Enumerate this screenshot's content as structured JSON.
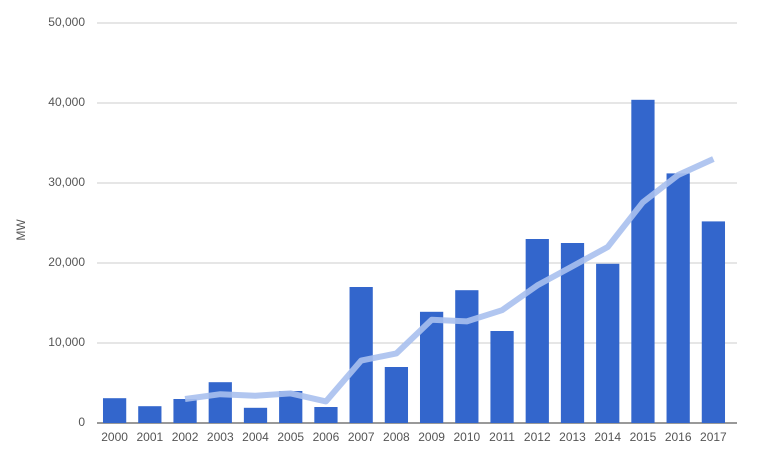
{
  "chart_data": {
    "type": "bar",
    "y_label": "MW",
    "categories": [
      "2000",
      "2001",
      "2002",
      "2003",
      "2004",
      "2005",
      "2006",
      "2007",
      "2008",
      "2009",
      "2010",
      "2011",
      "2012",
      "2013",
      "2014",
      "2015",
      "2016",
      "2017"
    ],
    "series": [
      {
        "color": "#3366cc",
        "values": [
          3100,
          2100,
          3000,
          5100,
          1900,
          4000,
          2000,
          17000,
          7000,
          13900,
          16600,
          11500,
          23000,
          22500,
          19900,
          40400,
          31200,
          25200
        ]
      },
      {
        "type": "line",
        "color": "#a9c0ee",
        "values": [
          null,
          null,
          3000,
          3600,
          3400,
          3700,
          2700,
          7800,
          8700,
          12900,
          12700,
          14100,
          17200,
          19600,
          22000,
          27600,
          31000,
          33000
        ]
      }
    ],
    "ylim": [
      0,
      50000
    ],
    "yticks": [
      0,
      {
        "value": 10000,
        "label": "10,000"
      },
      {
        "value": 20000,
        "label": "20,000"
      },
      {
        "value": 30000,
        "label": "30,000"
      },
      {
        "value": 40000,
        "label": "40,000"
      },
      {
        "value": 50000,
        "label": "50,000"
      }
    ],
    "grid": true
  }
}
